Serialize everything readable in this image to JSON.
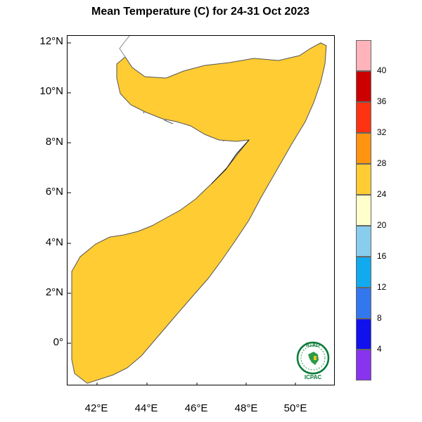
{
  "title": "Mean Temperature (C) for 24-31 Oct 2023",
  "axes": {
    "y_labels": [
      "12°N",
      "10°N",
      "8°N",
      "6°N",
      "4°N",
      "2°N",
      "0°"
    ],
    "x_labels": [
      "42°E",
      "44°E",
      "46°E",
      "48°E",
      "50°E"
    ]
  },
  "legend": {
    "labels": [
      "40",
      "36",
      "32",
      "28",
      "24",
      "20",
      "16",
      "12",
      "8",
      "4"
    ],
    "colors": [
      "#FFB3BA",
      "#CC0000",
      "#FF3311",
      "#FF9411",
      "#FFCC33",
      "#FFFFCC",
      "#88CCEE",
      "#11AAEE",
      "#3377EE",
      "#1111EE",
      "#8833EE"
    ]
  },
  "map": {
    "region": "Somalia",
    "palette": {
      "base": "#FFCC33",
      "cool": "#FFFFCC",
      "warm": "#FF9411",
      "cold": "#88CCEE"
    }
  },
  "logo": {
    "top_text": "IGAD",
    "bottom_text": "ICPAC"
  }
}
